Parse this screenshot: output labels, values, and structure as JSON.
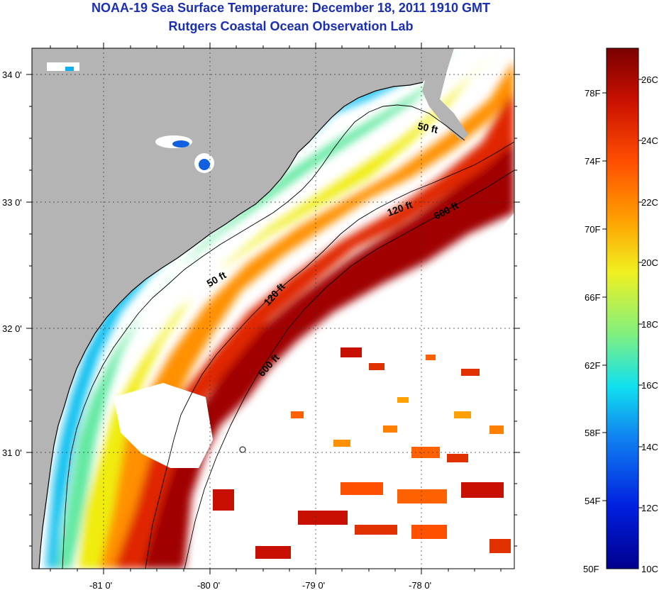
{
  "header": {
    "title": "NOAA-19 Sea Surface Temperature:  December 18, 2011 1910 GMT",
    "subtitle": "Rutgers Coastal Ocean Observation Lab"
  },
  "map": {
    "lat_labels": [
      "34 0'",
      "33 0'",
      "32 0'",
      "31 0'"
    ],
    "lon_labels": [
      "-81 0'",
      "-80 0'",
      "-79 0'",
      "-78 0'"
    ],
    "isobath_labels": [
      "50 ft",
      "120 ft",
      "600 ft",
      "50 ft",
      "120 ft",
      "600 ft"
    ],
    "land_color": "#b4b4b4",
    "cloud_color": "#ffffff"
  },
  "colorbar": {
    "fahrenheit_labels": [
      "78F",
      "74F",
      "70F",
      "66F",
      "62F",
      "58F",
      "54F",
      "50F"
    ],
    "celsius_labels": [
      "26C",
      "24C",
      "22C",
      "20C",
      "18C",
      "16C",
      "14C",
      "12C",
      "10C"
    ],
    "colors": [
      "#7a0000",
      "#c81000",
      "#ff5000",
      "#ffa000",
      "#f0f020",
      "#80f080",
      "#10e0f0",
      "#1080f0",
      "#0020e0",
      "#00008c"
    ]
  }
}
